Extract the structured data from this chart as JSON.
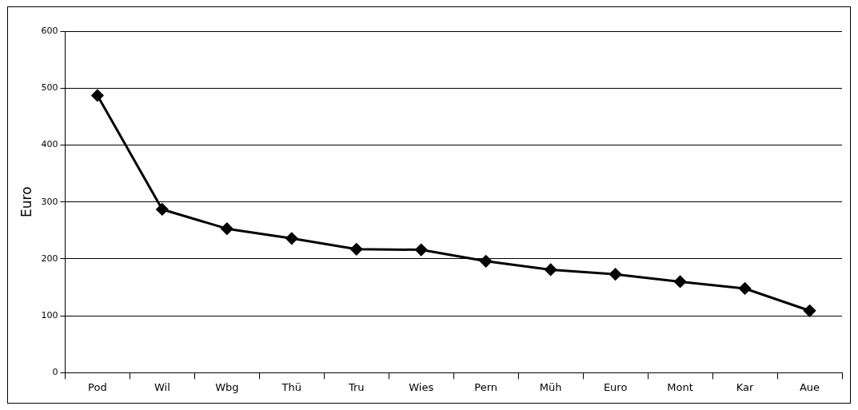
{
  "chart_data": {
    "type": "line",
    "ylabel": "Euro",
    "categories": [
      "Pod",
      "Wil",
      "Wbg",
      "Thü",
      "Tru",
      "Wies",
      "Pern",
      "Müh",
      "Euro",
      "Mont",
      "Kar",
      "Aue"
    ],
    "series": [
      {
        "color": "#000000",
        "values": [
          487,
          287,
          253,
          236,
          217,
          216,
          196,
          181,
          173,
          160,
          148,
          109
        ]
      }
    ],
    "ylim": [
      0,
      600
    ],
    "yticks": [
      0,
      100,
      200,
      300,
      400,
      500,
      600
    ],
    "grid": "y",
    "legend": false,
    "marker": "diamond",
    "line_style": "solid"
  }
}
